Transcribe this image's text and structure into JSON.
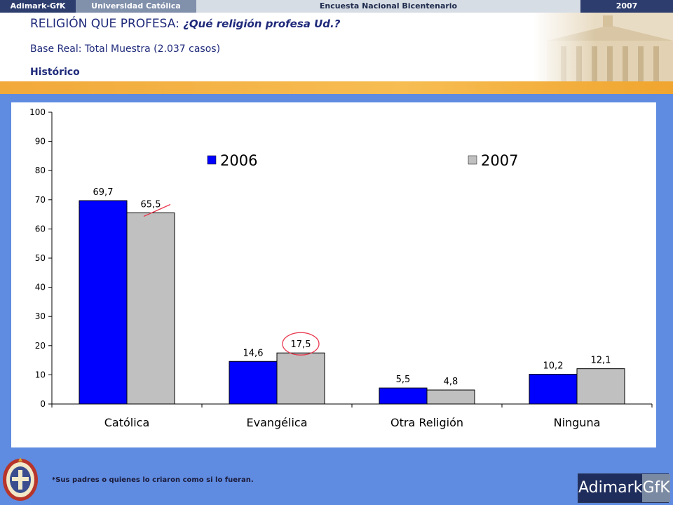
{
  "topbar": {
    "brand": "Adimark-GfK",
    "university": "Universidad Católica",
    "survey": "Encuesta Nacional Bicentenario",
    "year": "2007"
  },
  "header": {
    "title_main": "RELIGIÓN QUE PROFESA: ",
    "title_question": "¿Qué religión profesa Ud.?",
    "base": "Base Real: Total Muestra (2.037 casos)",
    "section": "Histórico"
  },
  "footer": {
    "note": "*Sus padres o quienes lo criaron como si lo fueran.",
    "logo_left": "Adimark",
    "logo_right": "GfK"
  },
  "colors": {
    "series_2006": "#0000ff",
    "series_2007": "#c0c0c0",
    "highlight": "#e8384f",
    "background": "#5f8be0"
  },
  "chart_data": {
    "type": "bar",
    "categories": [
      "Católica",
      "Evangélica",
      "Otra Religión",
      "Ninguna"
    ],
    "series": [
      {
        "name": "2006",
        "values": [
          69.7,
          14.6,
          5.5,
          10.2
        ],
        "labels": [
          "69,7",
          "14,6",
          "5,5",
          "10,2"
        ]
      },
      {
        "name": "2007",
        "values": [
          65.5,
          17.5,
          4.8,
          12.1
        ],
        "labels": [
          "65,5",
          "17,5",
          "4,8",
          "12,1"
        ]
      }
    ],
    "ylim": [
      0,
      100
    ],
    "yticks": [
      "0",
      "10",
      "20",
      "30",
      "40",
      "50",
      "60",
      "70",
      "80",
      "90",
      "100"
    ],
    "xlabel": "",
    "ylabel": "",
    "legend_position": "top",
    "grid": false
  }
}
